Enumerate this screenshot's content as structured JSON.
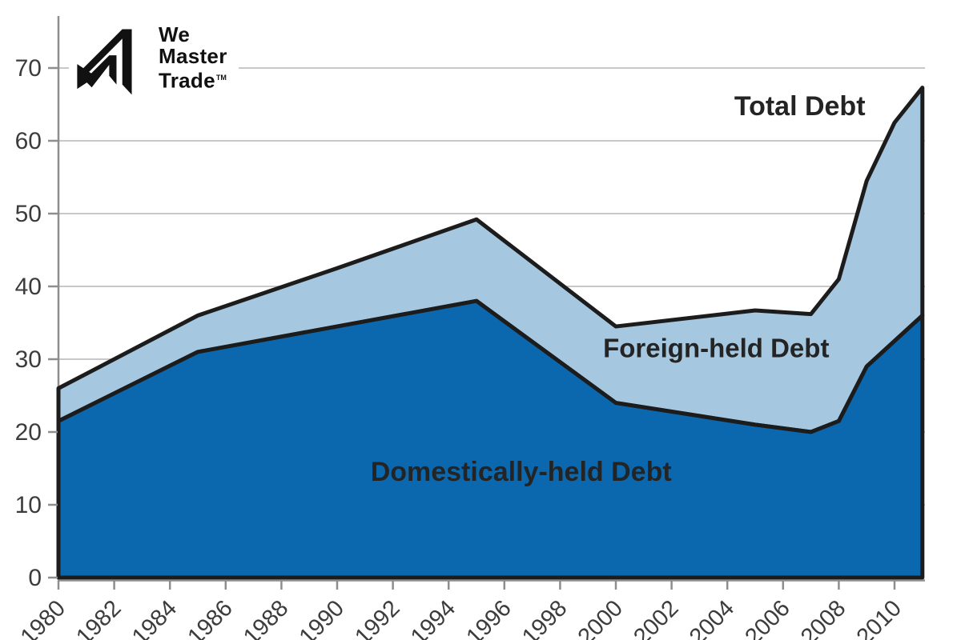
{
  "logo": {
    "line1": "We",
    "line2": "Master",
    "line3": "Trade",
    "trademark": "TM"
  },
  "chart_data": {
    "type": "area",
    "title": "",
    "xlabel": "",
    "ylabel": "",
    "x": [
      1980,
      1985,
      1990,
      1995,
      2000,
      2005,
      2007,
      2008,
      2009,
      2010,
      2011
    ],
    "series": [
      {
        "name": "Domestically-held Debt",
        "color": "#0b68af",
        "values": [
          21.5,
          31,
          34.5,
          38,
          24,
          21,
          20,
          21.5,
          29,
          32.5,
          36
        ]
      },
      {
        "name": "Foreign-held Debt",
        "color": "#a6c7e0",
        "values": [
          4.5,
          5,
          8,
          11.2,
          10.5,
          15.7,
          16.2,
          19.5,
          25.5,
          30,
          31.3
        ]
      },
      {
        "name": "Total Debt",
        "color": "#a6c7e0",
        "values": [
          26,
          36,
          42.5,
          49.2,
          34.5,
          36.7,
          36.2,
          41,
          54.5,
          62.5,
          67.3
        ]
      }
    ],
    "annotations": [
      {
        "text": "Total Debt",
        "x": 2006.6,
        "y": 63.5,
        "size": 34
      },
      {
        "text": "Foreign-held Debt",
        "x": 2003.6,
        "y": 30.3,
        "size": 33
      },
      {
        "text": "Domestically-held Debt",
        "x": 1996.6,
        "y": 13.3,
        "size": 34
      }
    ],
    "xticks": [
      1980,
      1982,
      1984,
      1986,
      1988,
      1990,
      1992,
      1994,
      1996,
      1998,
      2000,
      2002,
      2004,
      2006,
      2008,
      2010
    ],
    "yticks": [
      0,
      10,
      20,
      30,
      40,
      50,
      60,
      70
    ],
    "xlim": [
      1980,
      2011
    ],
    "ylim": [
      0,
      70
    ],
    "grid": true,
    "legend_position": "none"
  },
  "colors": {
    "domestic_area": "#0b68af",
    "foreign_area": "#a6c7e0",
    "line_outline": "#1c1c1c",
    "gridline": "#c8c8c8",
    "axis": "#8e8e8e",
    "tick_label": "#3c3c3c",
    "annotation_text": "#242424"
  }
}
